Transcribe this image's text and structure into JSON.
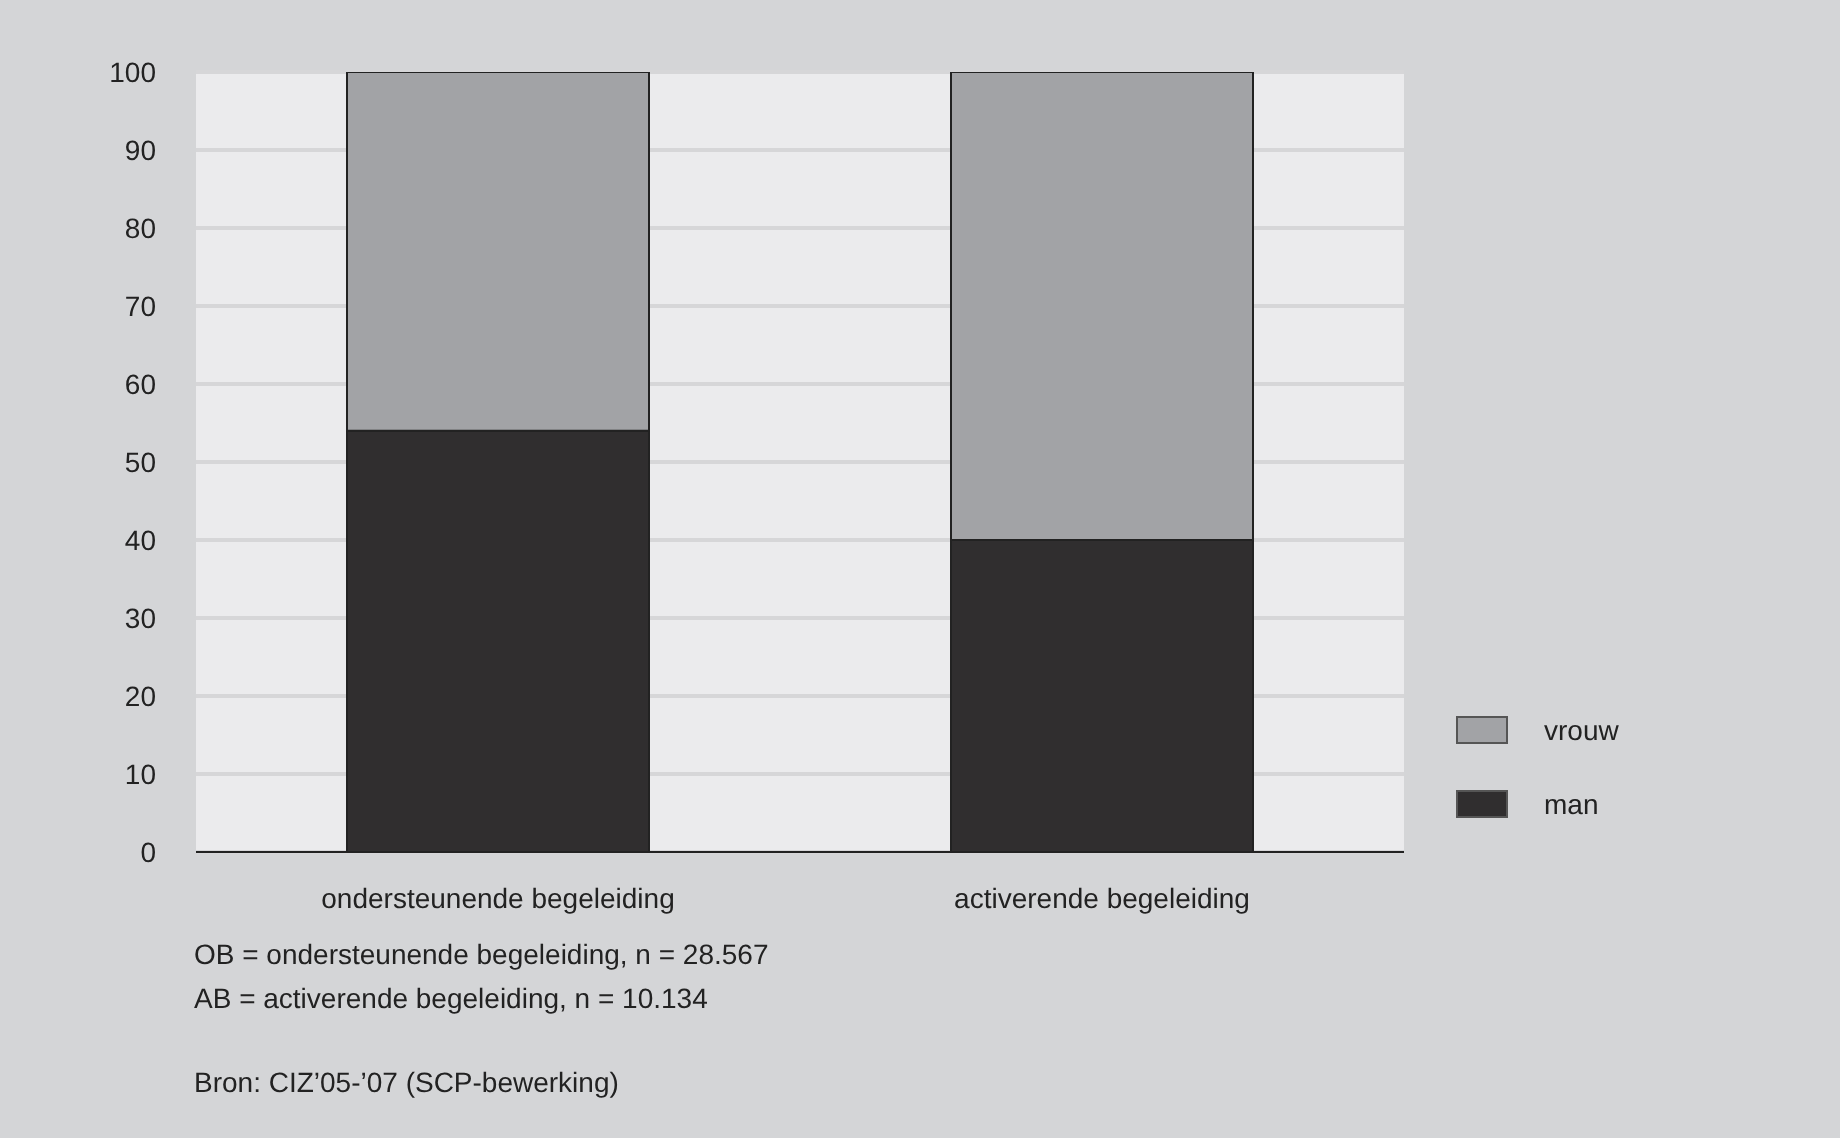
{
  "chart_data": {
    "type": "bar",
    "stacked": true,
    "categories": [
      "ondersteunende begeleiding",
      "activerende begeleiding"
    ],
    "series": [
      {
        "name": "man",
        "color": "#302e2f",
        "values": [
          54,
          40
        ]
      },
      {
        "name": "vrouw",
        "color": "#a2a3a6",
        "values": [
          46,
          60
        ]
      }
    ],
    "ylim": [
      0,
      100
    ],
    "yticks": [
      0,
      10,
      20,
      30,
      40,
      50,
      60,
      70,
      80,
      90,
      100
    ],
    "grid": "y",
    "legend": "right",
    "annotations": [
      "OB = ondersteunende begeleiding, n = 28.567",
      "AB = activerende begeleiding, n = 10.134",
      "Bron: CIZ’05-’07 (SCP-bewerking)"
    ]
  }
}
